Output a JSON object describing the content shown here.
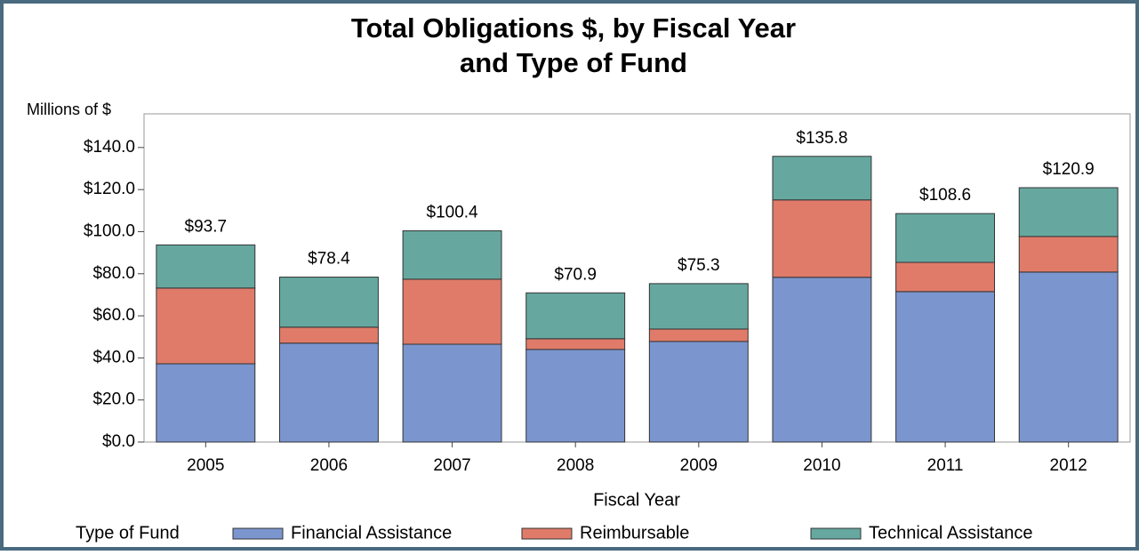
{
  "chart_data": {
    "type": "stacked_bar",
    "title": [
      "Total Obligations $, by Fiscal Year",
      "and Type of Fund"
    ],
    "y_label": "Millions of $",
    "x_label": "Fiscal Year",
    "legend_title": "Type of Fund",
    "categories": [
      "2005",
      "2006",
      "2007",
      "2008",
      "2009",
      "2010",
      "2011",
      "2012"
    ],
    "series": [
      {
        "name": "Financial Assistance",
        "color": "#7b96cf",
        "values": [
          37.2,
          47.0,
          46.5,
          44.0,
          47.8,
          78.3,
          71.5,
          80.8
        ]
      },
      {
        "name": "Reimbursable",
        "color": "#e07b6a",
        "values": [
          36.0,
          7.6,
          30.9,
          5.1,
          5.9,
          36.8,
          13.9,
          16.9
        ]
      },
      {
        "name": "Technical Assistance",
        "color": "#66a8a0",
        "values": [
          20.5,
          23.8,
          23.0,
          21.8,
          21.6,
          20.7,
          23.2,
          23.2
        ]
      }
    ],
    "totals": [
      93.7,
      78.4,
      100.4,
      70.9,
      75.3,
      135.8,
      108.6,
      120.9
    ],
    "total_labels": [
      "$93.7",
      "$78.4",
      "$100.4",
      "$70.9",
      "$75.3",
      "$135.8",
      "$108.6",
      "$120.9"
    ],
    "ylim": [
      0,
      156
    ],
    "yticks": [
      {
        "value": 0,
        "label": "$0.0"
      },
      {
        "value": 20,
        "label": "$20.0"
      },
      {
        "value": 40,
        "label": "$40.0"
      },
      {
        "value": 60,
        "label": "$60.0"
      },
      {
        "value": 80,
        "label": "$80.0"
      },
      {
        "value": 100,
        "label": "$100.0"
      },
      {
        "value": 120,
        "label": "$120.0"
      },
      {
        "value": 140,
        "label": "$140.0"
      }
    ]
  }
}
